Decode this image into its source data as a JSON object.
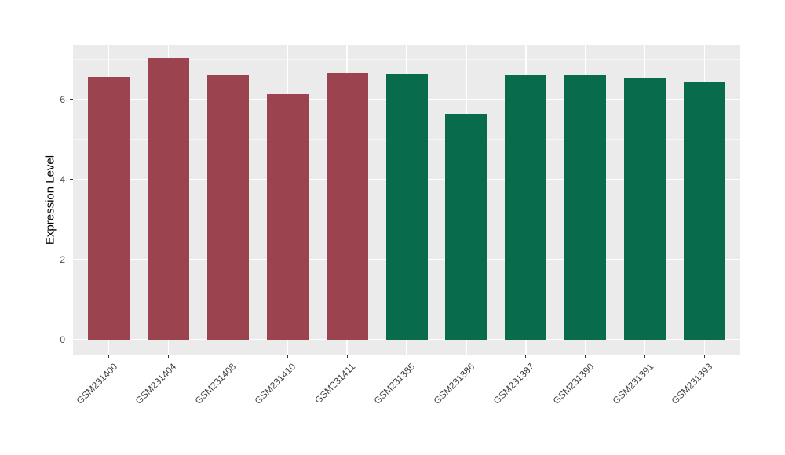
{
  "chart_data": {
    "type": "bar",
    "title": "",
    "xlabel": "",
    "ylabel": "Expression Level",
    "categories": [
      "GSM231400",
      "GSM231404",
      "GSM231408",
      "GSM231410",
      "GSM231411",
      "GSM231385",
      "GSM231386",
      "GSM231387",
      "GSM231390",
      "GSM231391",
      "GSM231393"
    ],
    "values": [
      6.57,
      7.03,
      6.61,
      6.14,
      6.66,
      6.65,
      5.65,
      6.63,
      6.63,
      6.54,
      6.42
    ],
    "bar_colors": [
      "#9B4450",
      "#9B4450",
      "#9B4450",
      "#9B4450",
      "#9B4450",
      "#076B4C",
      "#076B4C",
      "#076B4C",
      "#076B4C",
      "#076B4C",
      "#076B4C"
    ],
    "group_colors": {
      "left_group": "#9B4450",
      "right_group": "#076B4C"
    },
    "yticks": [
      0,
      2,
      4,
      6
    ],
    "minor_yticks": [
      1,
      3,
      5,
      7
    ],
    "ylim": [
      -0.37,
      7.37
    ],
    "grid": "on",
    "legend": "none",
    "panel_bg": "#EBEBEB",
    "grid_color": "#FFFFFF",
    "tick_color": "#333333",
    "axis_text_color": "#4D4D4D"
  }
}
